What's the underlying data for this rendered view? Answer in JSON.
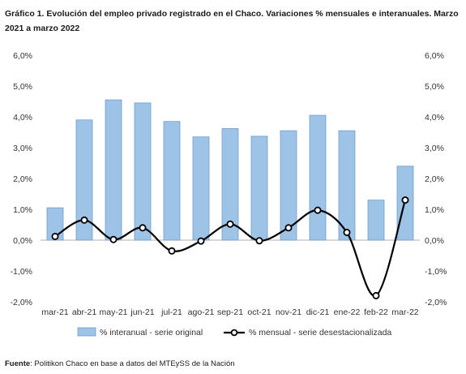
{
  "title": "Gráfico 1. Evolución del empleo privado registrado en el Chaco. Variaciones % mensuales e interanuales. Marzo 2021 a marzo 2022",
  "source": {
    "label": "Fuente",
    "text": ": Politikon Chaco en base a datos del MTEySS de la Nación"
  },
  "chart_data": {
    "type": "bar",
    "categories": [
      "mar-21",
      "abr-21",
      "may-21",
      "jun-21",
      "jul-21",
      "ago-21",
      "sep-21",
      "oct-21",
      "nov-21",
      "dic-21",
      "ene-22",
      "feb-22",
      "mar-22"
    ],
    "series": [
      {
        "name": "% interanual - serie original",
        "type": "bar",
        "color": "#9dc3e6",
        "values": [
          1.05,
          3.9,
          4.55,
          4.45,
          3.85,
          3.35,
          3.62,
          3.37,
          3.55,
          4.05,
          3.55,
          1.3,
          2.4
        ]
      },
      {
        "name": "% mensual - serie desestacionalizada",
        "type": "line",
        "color": "#000000",
        "values": [
          0.12,
          0.65,
          0.02,
          0.4,
          -0.35,
          -0.03,
          0.52,
          -0.02,
          0.4,
          0.97,
          0.25,
          -1.8,
          1.3
        ]
      }
    ],
    "ylim": [
      -2.0,
      6.0
    ],
    "yticks": [
      "6,0%",
      "5,0%",
      "4,0%",
      "3,0%",
      "2,0%",
      "1,0%",
      "0,0%",
      "-1,0%",
      "-2,0%"
    ],
    "grid": false,
    "legend": "bottom"
  }
}
